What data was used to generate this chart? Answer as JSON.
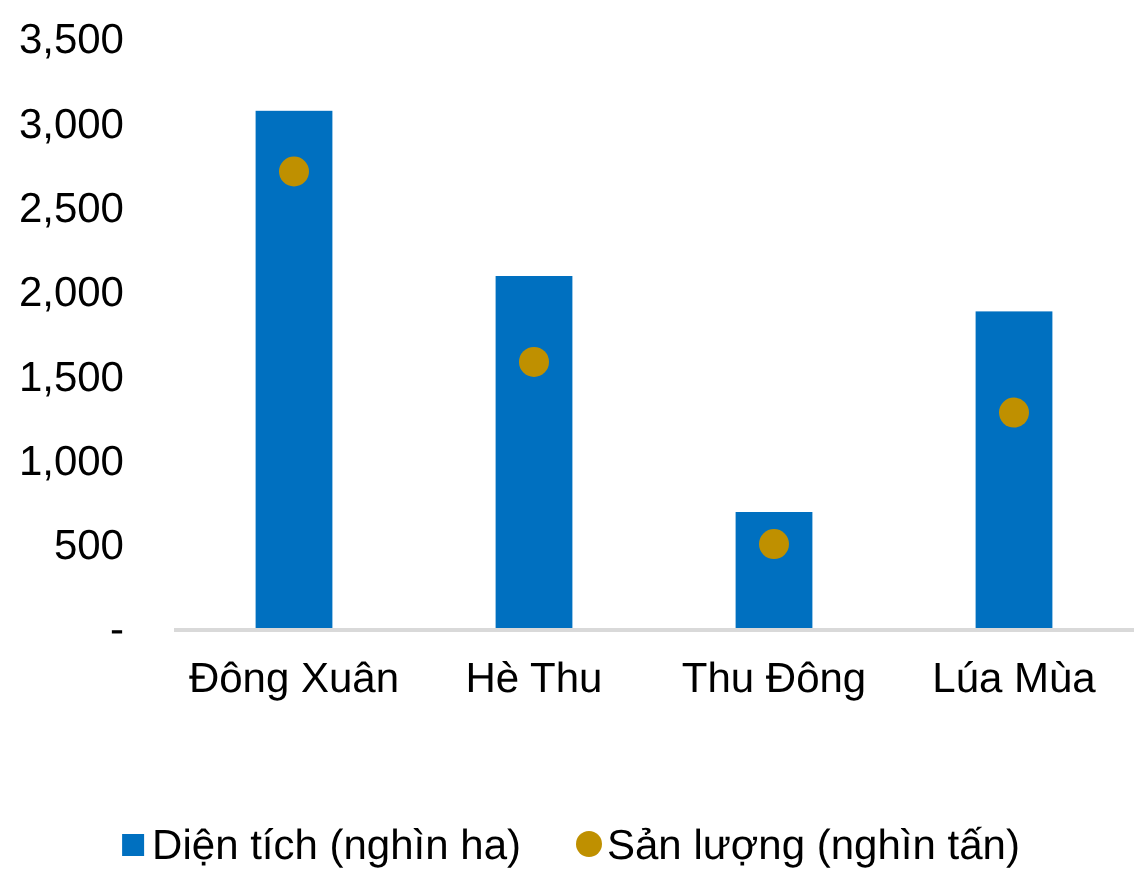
{
  "chart_data": {
    "type": "bar",
    "categories": [
      "Đông Xuân",
      "Hè Thu",
      "Thu Đông",
      "Lúa Mùa"
    ],
    "series": [
      {
        "name": "Diện tích (nghìn ha)",
        "color": "#0070c0",
        "values": [
          3080,
          2100,
          700,
          1890
        ]
      },
      {
        "name": "Sản lượng (nghìn tấn)",
        "type": "scatter",
        "color": "#bf9000",
        "x": [
          "Đông Xuân",
          "Hè Thu",
          "Thu Đông",
          "Lúa Mùa"
        ],
        "values": [
          2720,
          1590,
          510,
          1290
        ]
      }
    ],
    "ylim": [
      0,
      3500
    ],
    "yticks": [
      {
        "value": 0,
        "label": "-"
      },
      {
        "value": 500,
        "label": "500"
      },
      {
        "value": 1000,
        "label": "1,000"
      },
      {
        "value": 1500,
        "label": "1,500"
      },
      {
        "value": 2000,
        "label": "2,000"
      },
      {
        "value": 2500,
        "label": "2,500"
      },
      {
        "value": 3000,
        "label": "3,000"
      },
      {
        "value": 3500,
        "label": "3,500"
      }
    ],
    "grid": false,
    "legend": "bottom",
    "marker": "circle"
  }
}
